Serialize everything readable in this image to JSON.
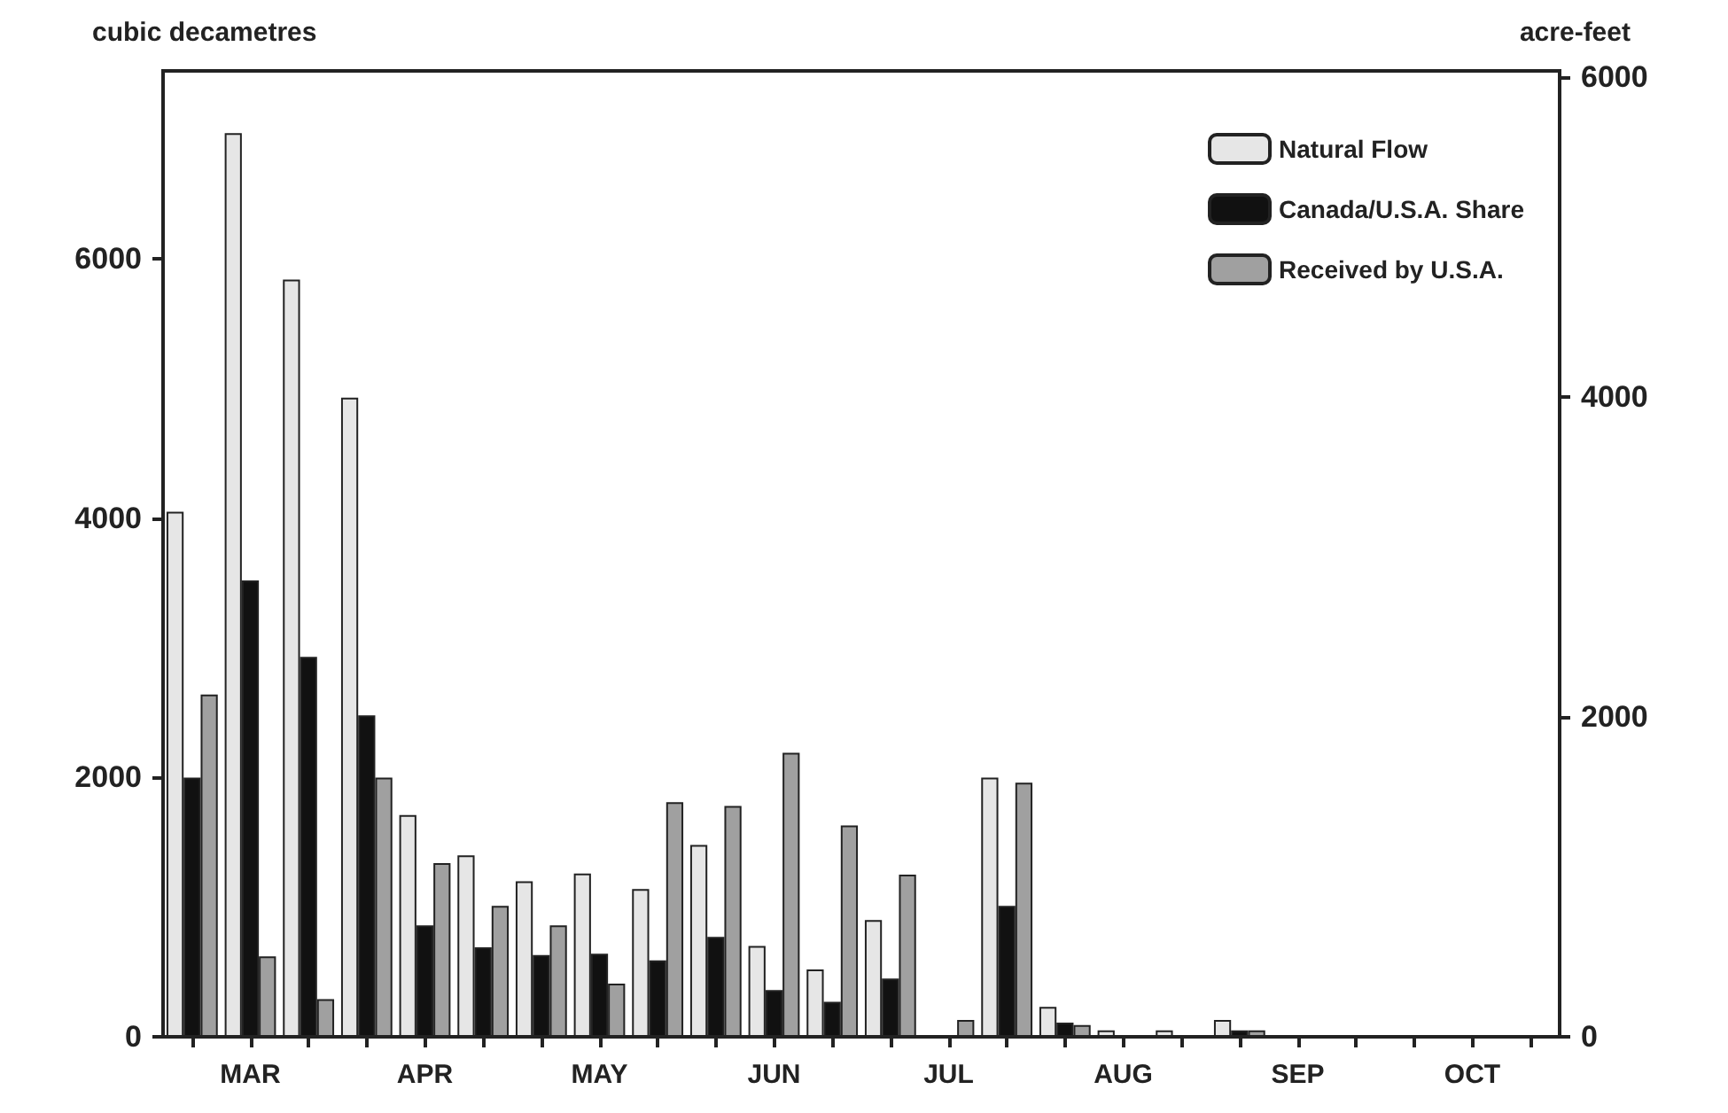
{
  "chart_data": {
    "type": "bar",
    "ylabel": "cubic decametres",
    "y2label": "acre-feet",
    "categories": [
      null,
      "MAR",
      null,
      null,
      "APR",
      null,
      null,
      "MAY",
      null,
      null,
      "JUN",
      null,
      null,
      "JUL",
      null,
      null,
      "AUG",
      null,
      null,
      "SEP",
      null,
      null,
      "OCT",
      null
    ],
    "series": [
      {
        "name": "Natural Flow",
        "color": "#e6e6e6",
        "values": [
          4050,
          6970,
          5840,
          4930,
          1710,
          1400,
          1200,
          1260,
          1140,
          1480,
          700,
          520,
          900,
          0,
          2000,
          230,
          50,
          50,
          130,
          0,
          0,
          0,
          0,
          0
        ]
      },
      {
        "name": "Canada/U.S.A. Share",
        "color": "#111111",
        "values": [
          2000,
          3520,
          2930,
          2480,
          860,
          690,
          630,
          640,
          590,
          770,
          360,
          270,
          450,
          0,
          1010,
          110,
          0,
          0,
          50,
          0,
          0,
          0,
          0,
          0
        ]
      },
      {
        "name": "Received by U.S.A.",
        "color": "#a0a0a0",
        "values": [
          2640,
          620,
          290,
          2000,
          1340,
          1010,
          860,
          410,
          1810,
          1780,
          2190,
          1630,
          1250,
          130,
          1960,
          90,
          0,
          0,
          50,
          0,
          0,
          0,
          0,
          0
        ]
      }
    ],
    "ylim": [
      0,
      7450
    ],
    "yticks": [
      0,
      2000,
      4000,
      6000
    ],
    "y2lim": [
      0,
      6040
    ],
    "y2ticks": [
      0,
      2000,
      4000,
      6000
    ],
    "grid": false,
    "legend": "top right"
  }
}
